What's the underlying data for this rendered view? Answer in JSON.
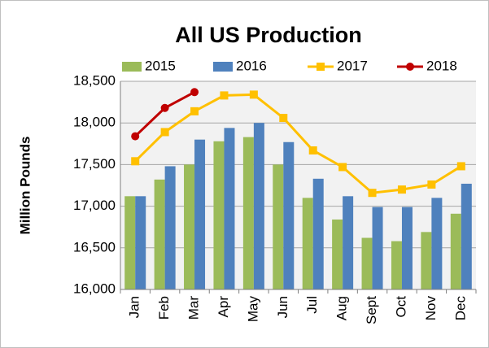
{
  "chart_data": {
    "type": "bar",
    "title": "All US Production",
    "y_label": "Million Pounds",
    "categories": [
      "Jan",
      "Feb",
      "Mar",
      "Apr",
      "May",
      "Jun",
      "Jul",
      "Aug",
      "Sept",
      "Oct",
      "Nov",
      "Dec"
    ],
    "series": [
      {
        "name": "2015",
        "color": "#9bbb59",
        "type": "bar",
        "values": [
          17120,
          17320,
          17500,
          17780,
          17830,
          17500,
          17100,
          16840,
          16620,
          16580,
          16690,
          16910
        ]
      },
      {
        "name": "2016",
        "color": "#4f81bd",
        "type": "bar",
        "values": [
          17120,
          17480,
          17800,
          17940,
          18000,
          17770,
          17330,
          17120,
          16990,
          16990,
          17100,
          17270
        ]
      },
      {
        "name": "2017",
        "color": "#ffc000",
        "type": "line",
        "marker": "square",
        "values": [
          17540,
          17890,
          18140,
          18330,
          18340,
          18060,
          17670,
          17470,
          17160,
          17200,
          17260,
          17480
        ]
      },
      {
        "name": "2018",
        "color": "#c00000",
        "type": "line",
        "marker": "circle",
        "values": [
          17840,
          18180,
          18370,
          null,
          null,
          null,
          null,
          null,
          null,
          null,
          null,
          null
        ]
      }
    ],
    "ylim": [
      16000,
      18500
    ],
    "yticks": [
      {
        "value": 16000,
        "label": "16,000"
      },
      {
        "value": 16500,
        "label": "16,500"
      },
      {
        "value": 17000,
        "label": "17,000"
      },
      {
        "value": 17500,
        "label": "17,500"
      },
      {
        "value": 18000,
        "label": "18,000"
      },
      {
        "value": 18500,
        "label": "18,500"
      }
    ],
    "grid": true,
    "legend": "top"
  }
}
